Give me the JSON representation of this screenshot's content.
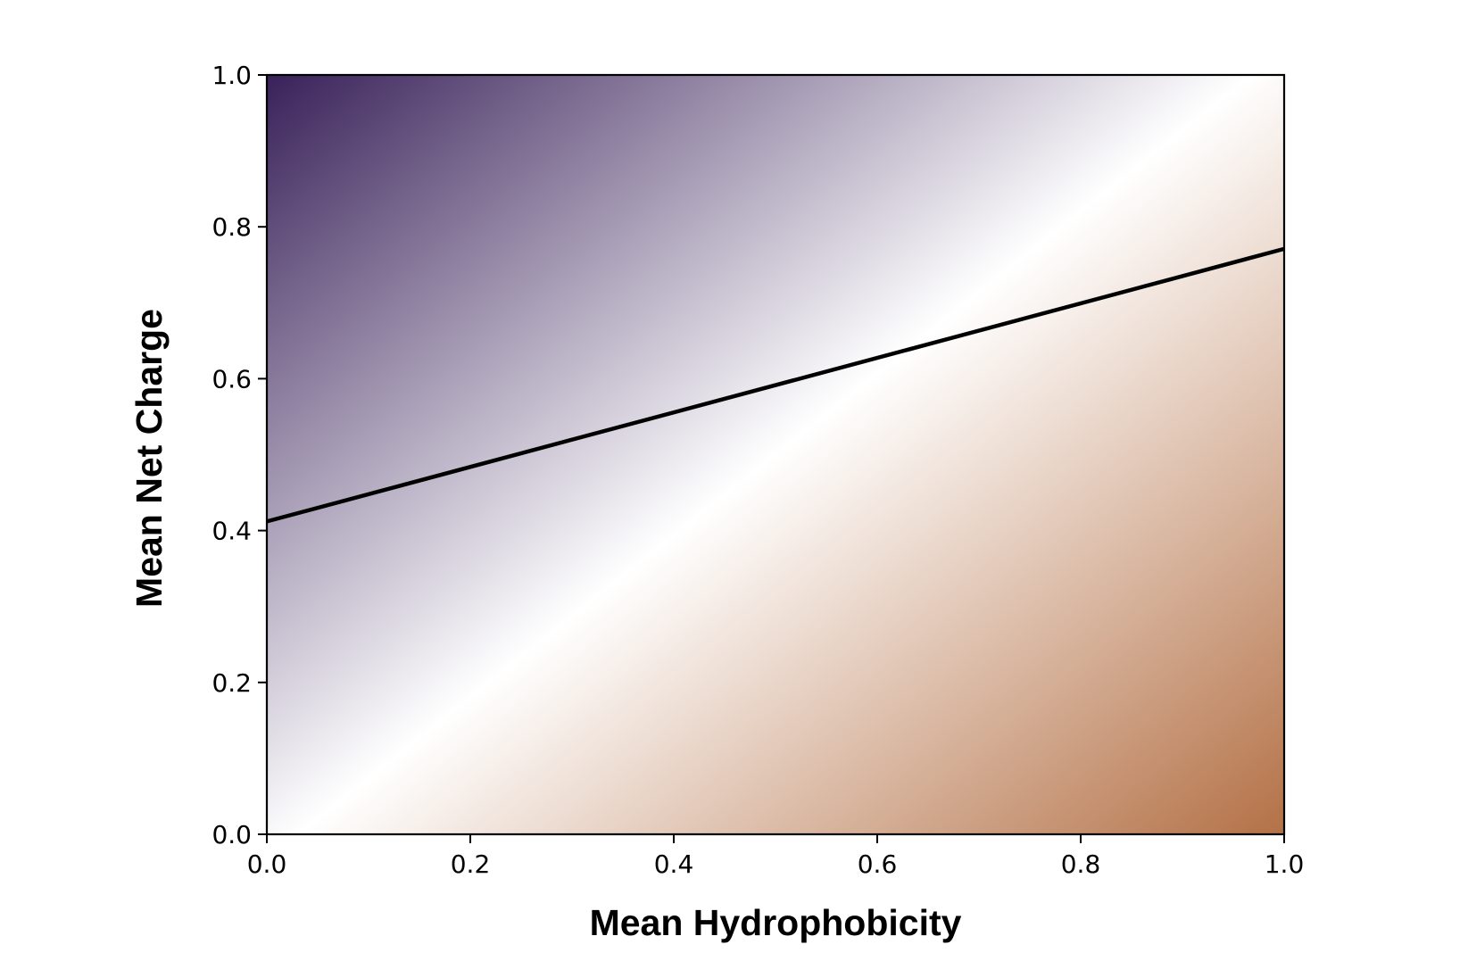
{
  "chart_data": {
    "type": "heatmap",
    "title": "",
    "xlabel": "Mean Hydrophobicity",
    "ylabel": "Mean Net Charge",
    "xlim": [
      0.0,
      1.0
    ],
    "ylim": [
      0.0,
      1.0
    ],
    "x_ticks": [
      "0.0",
      "0.2",
      "0.4",
      "0.6",
      "0.8",
      "1.0"
    ],
    "y_ticks": [
      "0.0",
      "0.2",
      "0.4",
      "0.6",
      "0.8",
      "1.0"
    ],
    "grid": false,
    "legend": "none",
    "colormap": {
      "name": "diverging purple-white-brown",
      "high_color": "#2f1651",
      "mid_color": "#ffffff",
      "low_color": "#b06a3d"
    },
    "boundary_line": {
      "color": "#000000",
      "x": [
        0.0,
        1.0
      ],
      "y": [
        0.412,
        0.771
      ]
    }
  }
}
